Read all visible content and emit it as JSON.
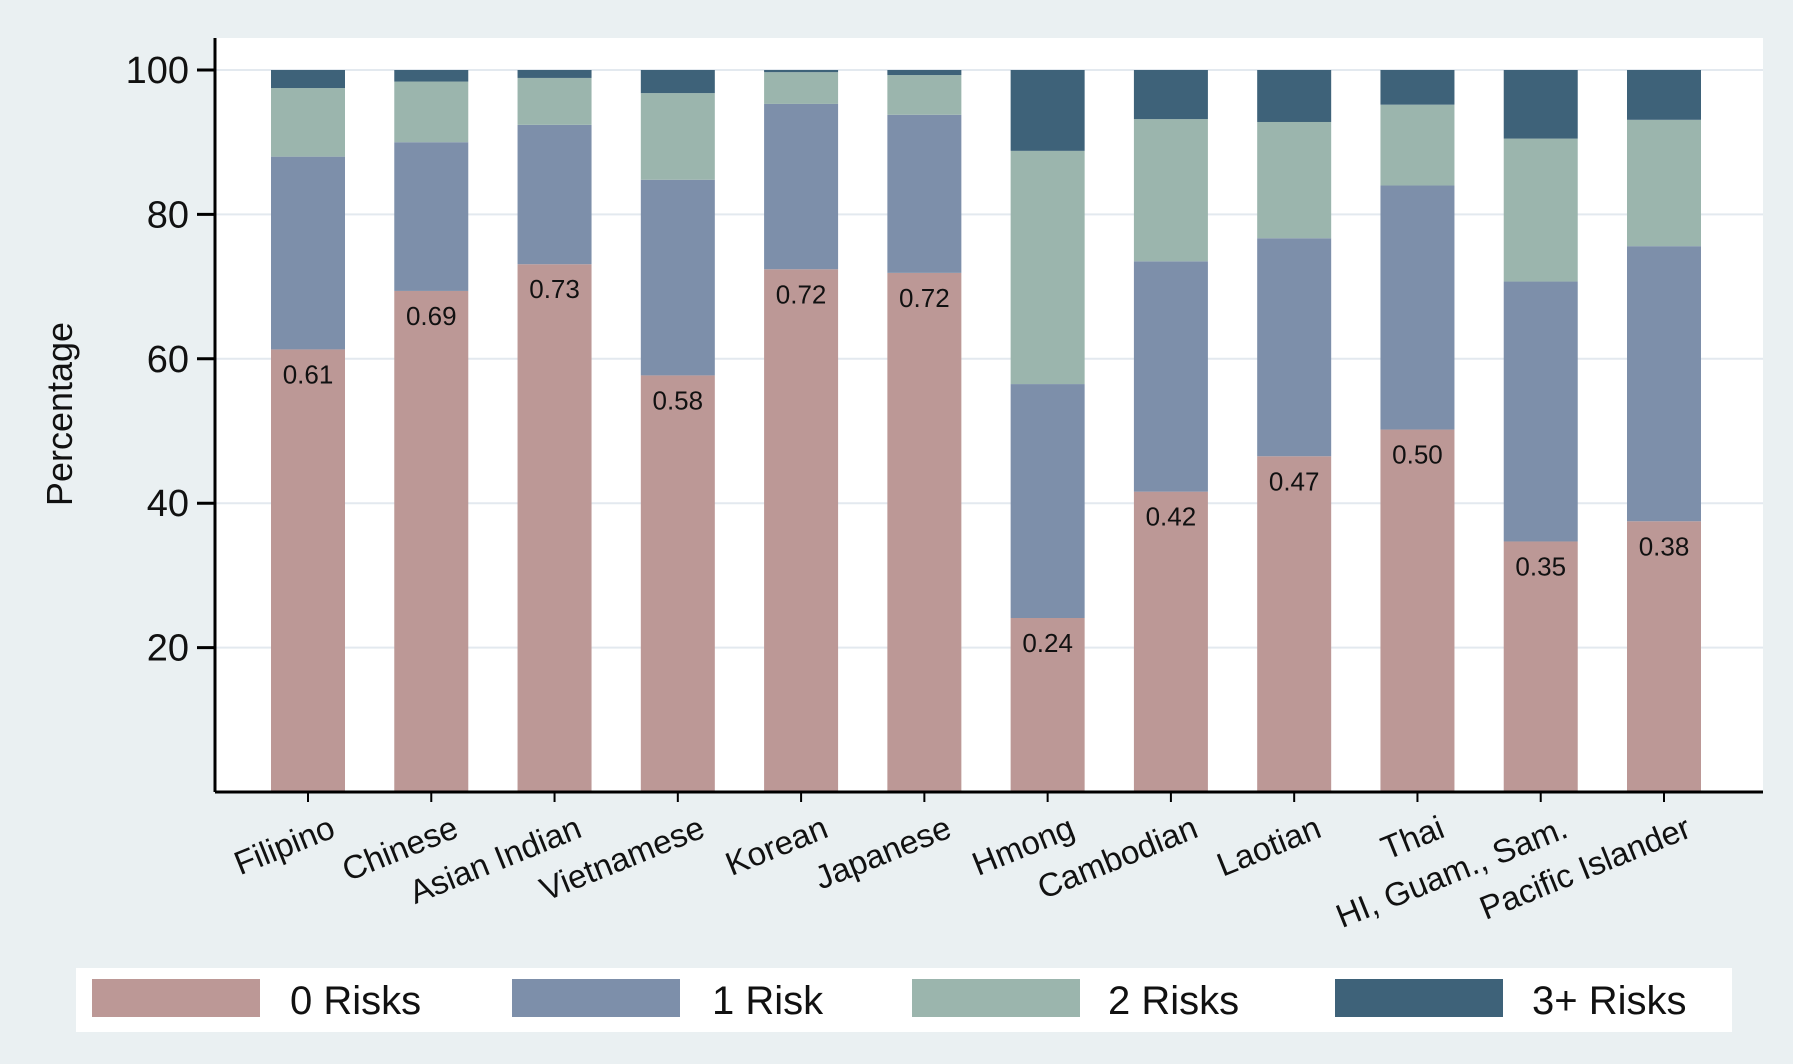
{
  "chart_data": {
    "type": "bar",
    "stacked": true,
    "title": "",
    "xlabel": "",
    "ylabel": "Percentage",
    "ylim": [
      0,
      100
    ],
    "yticks": [
      20,
      40,
      60,
      80,
      100
    ],
    "grid": true,
    "legend_position": "bottom",
    "categories": [
      "Filipino",
      "Chinese",
      "Asian Indian",
      "Vietnamese",
      "Korean",
      "Japanese",
      "Hmong",
      "Cambodian",
      "Laotian",
      "Thai",
      "HI, Guam., Sam.",
      "Pacific Islander"
    ],
    "series": [
      {
        "name": "0 Risks",
        "color": "#bc9896",
        "values": [
          61.3,
          69.4,
          73.1,
          57.7,
          72.4,
          71.9,
          24.1,
          41.6,
          46.5,
          50.2,
          34.7,
          37.5
        ]
      },
      {
        "name": "1 Risk",
        "color": "#7d8faa",
        "values": [
          26.7,
          20.6,
          19.3,
          27.1,
          22.9,
          21.9,
          32.4,
          31.9,
          30.2,
          33.8,
          36.0,
          38.1
        ]
      },
      {
        "name": "2 Risks",
        "color": "#9bb5ad",
        "values": [
          9.5,
          8.4,
          6.5,
          12.0,
          4.4,
          5.5,
          32.3,
          19.7,
          16.1,
          11.2,
          19.8,
          17.5
        ]
      },
      {
        "name": "3+ Risks",
        "color": "#3e6279",
        "values": [
          2.5,
          1.6,
          1.1,
          3.2,
          0.3,
          0.7,
          11.2,
          6.8,
          7.2,
          4.8,
          9.5,
          6.9
        ]
      }
    ],
    "data_labels": [
      "0.61",
      "0.69",
      "0.73",
      "0.58",
      "0.72",
      "0.72",
      "0.24",
      "0.42",
      "0.47",
      "0.50",
      "0.35",
      "0.38"
    ]
  }
}
